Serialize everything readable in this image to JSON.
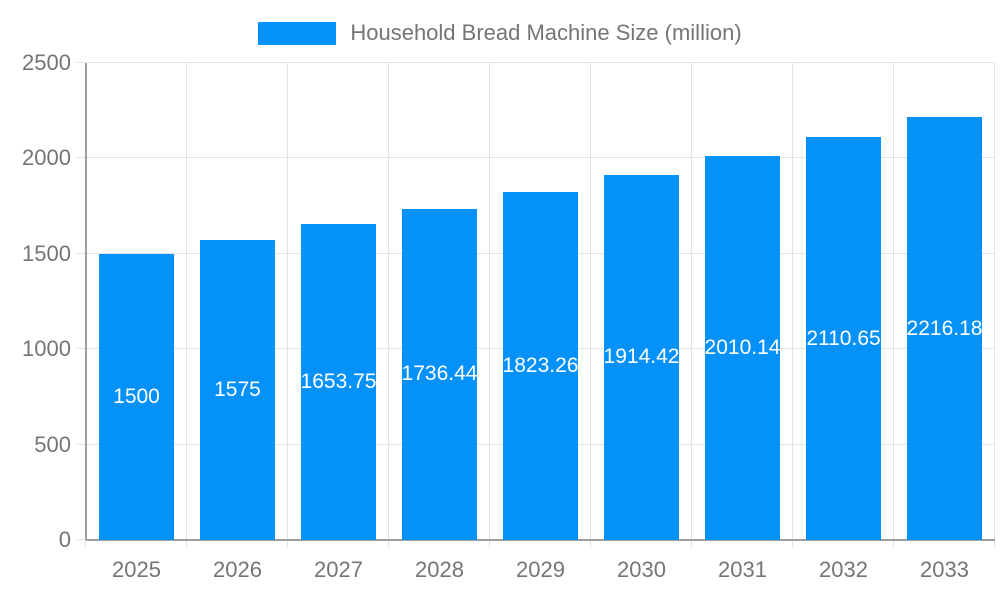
{
  "colors": {
    "bar": "#0591fa",
    "grid": "#e3e3e3",
    "axis": "#9e9e9e",
    "text": "#757575",
    "value_label": "#ffffff",
    "background": "#ffffff"
  },
  "legend": {
    "label": "Household Bread Machine Size (million)"
  },
  "chart_data": {
    "type": "bar",
    "title": "Household Bread Machine Size (million)",
    "xlabel": "",
    "ylabel": "",
    "categories": [
      "2025",
      "2026",
      "2027",
      "2028",
      "2029",
      "2030",
      "2031",
      "2032",
      "2033"
    ],
    "values": [
      1500,
      1575,
      1653.75,
      1736.44,
      1823.26,
      1914.42,
      2010.14,
      2110.65,
      2216.18
    ],
    "value_labels": [
      "1500",
      "1575",
      "1653.75",
      "1736.44",
      "1823.26",
      "1914.42",
      "2010.14",
      "2110.65",
      "2216.18"
    ],
    "ylim": [
      0,
      2500
    ],
    "yticks": [
      0,
      500,
      1000,
      1500,
      2000,
      2500
    ],
    "grid": true,
    "legend_position": "top",
    "bar_width_fraction": 0.75
  }
}
